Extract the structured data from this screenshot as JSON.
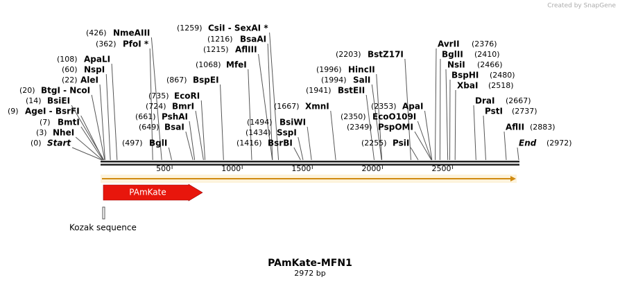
{
  "credit": "Created by SnapGene",
  "map": {
    "title": "PAmKate-MFN1",
    "length": "2972 bp",
    "ruler": {
      "ticks": [
        500,
        1000,
        1500,
        2000,
        2500
      ]
    },
    "sites": [
      {
        "name": "Start",
        "position": {
          "value": 0,
          "label": "(0)"
        }
      },
      {
        "name": "NheI",
        "position": {
          "value": 3,
          "label": "(3)"
        }
      },
      {
        "name": "BmtI",
        "position": {
          "value": 7,
          "label": "(7)"
        }
      },
      {
        "name": "AgeI  - BsrFI",
        "position": {
          "value": 9,
          "label": "(9)"
        }
      },
      {
        "name": "BsiEI",
        "position": {
          "value": 14,
          "label": "(14)"
        }
      },
      {
        "name": "BtgI  - NcoI",
        "position": {
          "value": 20,
          "label": "(20)"
        }
      },
      {
        "name": "AleI",
        "position": {
          "value": 22,
          "label": "(22)"
        }
      },
      {
        "name": "NspI",
        "position": {
          "value": 60,
          "label": "(60)"
        }
      },
      {
        "name": "ApaLI",
        "position": {
          "value": 108,
          "label": "(108)"
        }
      },
      {
        "name": "PfoI *",
        "position": {
          "value": 362,
          "label": "(362)"
        }
      },
      {
        "name": "NmeAIII",
        "position": {
          "value": 426,
          "label": "(426)"
        }
      },
      {
        "name": "BglI",
        "position": {
          "value": 497,
          "label": "(497)"
        }
      },
      {
        "name": "BsaI",
        "position": {
          "value": 649,
          "label": "(649)"
        }
      },
      {
        "name": "PshAI",
        "position": {
          "value": 661,
          "label": "(661)"
        }
      },
      {
        "name": "BmrI",
        "position": {
          "value": 724,
          "label": "(724)"
        }
      },
      {
        "name": "EcoRI",
        "position": {
          "value": 735,
          "label": "(735)"
        }
      },
      {
        "name": "BspEI",
        "position": {
          "value": 867,
          "label": "(867)"
        }
      },
      {
        "name": "MfeI",
        "position": {
          "value": 1068,
          "label": "(1068)"
        }
      },
      {
        "name": "AflIII",
        "position": {
          "value": 1215,
          "label": "(1215)"
        }
      },
      {
        "name": "BsaAI",
        "position": {
          "value": 1216,
          "label": "(1216)"
        }
      },
      {
        "name": "CsiI  - SexAI *",
        "position": {
          "value": 1259,
          "label": "(1259)"
        }
      },
      {
        "name": "BsrBI",
        "position": {
          "value": 1416,
          "label": "(1416)"
        }
      },
      {
        "name": "SspI",
        "position": {
          "value": 1434,
          "label": "(1434)"
        }
      },
      {
        "name": "BsiWI",
        "position": {
          "value": 1494,
          "label": "(1494)"
        }
      },
      {
        "name": "XmnI",
        "position": {
          "value": 1667,
          "label": "(1667)"
        }
      },
      {
        "name": "BstEII",
        "position": {
          "value": 1941,
          "label": "(1941)"
        }
      },
      {
        "name": "SalI",
        "position": {
          "value": 1994,
          "label": "(1994)"
        }
      },
      {
        "name": "HincII",
        "position": {
          "value": 1996,
          "label": "(1996)"
        }
      },
      {
        "name": "BstZ17I",
        "position": {
          "value": 2203,
          "label": "(2203)"
        }
      },
      {
        "name": "PsiI",
        "position": {
          "value": 2255,
          "label": "(2255)"
        }
      },
      {
        "name": "PspOMI",
        "position": {
          "value": 2349,
          "label": "(2349)"
        }
      },
      {
        "name": "EcoO109I",
        "position": {
          "value": 2350,
          "label": "(2350)"
        }
      },
      {
        "name": "ApaI",
        "position": {
          "value": 2353,
          "label": "(2353)"
        }
      },
      {
        "name": "AvrII",
        "position": {
          "value": 2376,
          "label": "(2376)"
        }
      },
      {
        "name": "BglII",
        "position": {
          "value": 2410,
          "label": "(2410)"
        }
      },
      {
        "name": "NsiI",
        "position": {
          "value": 2466,
          "label": "(2466)"
        }
      },
      {
        "name": "BspHI",
        "position": {
          "value": 2480,
          "label": "(2480)"
        }
      },
      {
        "name": "XbaI",
        "position": {
          "value": 2518,
          "label": "(2518)"
        }
      },
      {
        "name": "DraI",
        "position": {
          "value": 2667,
          "label": "(2667)"
        }
      },
      {
        "name": "PstI",
        "position": {
          "value": 2737,
          "label": "(2737)"
        }
      },
      {
        "name": "AflII",
        "position": {
          "value": 2883,
          "label": "(2883)"
        }
      },
      {
        "name": "End",
        "position": {
          "value": 2972,
          "label": "(2972)"
        }
      }
    ],
    "features": [
      {
        "label": "PAmKate"
      },
      {
        "label": "Kozak sequence"
      }
    ]
  }
}
